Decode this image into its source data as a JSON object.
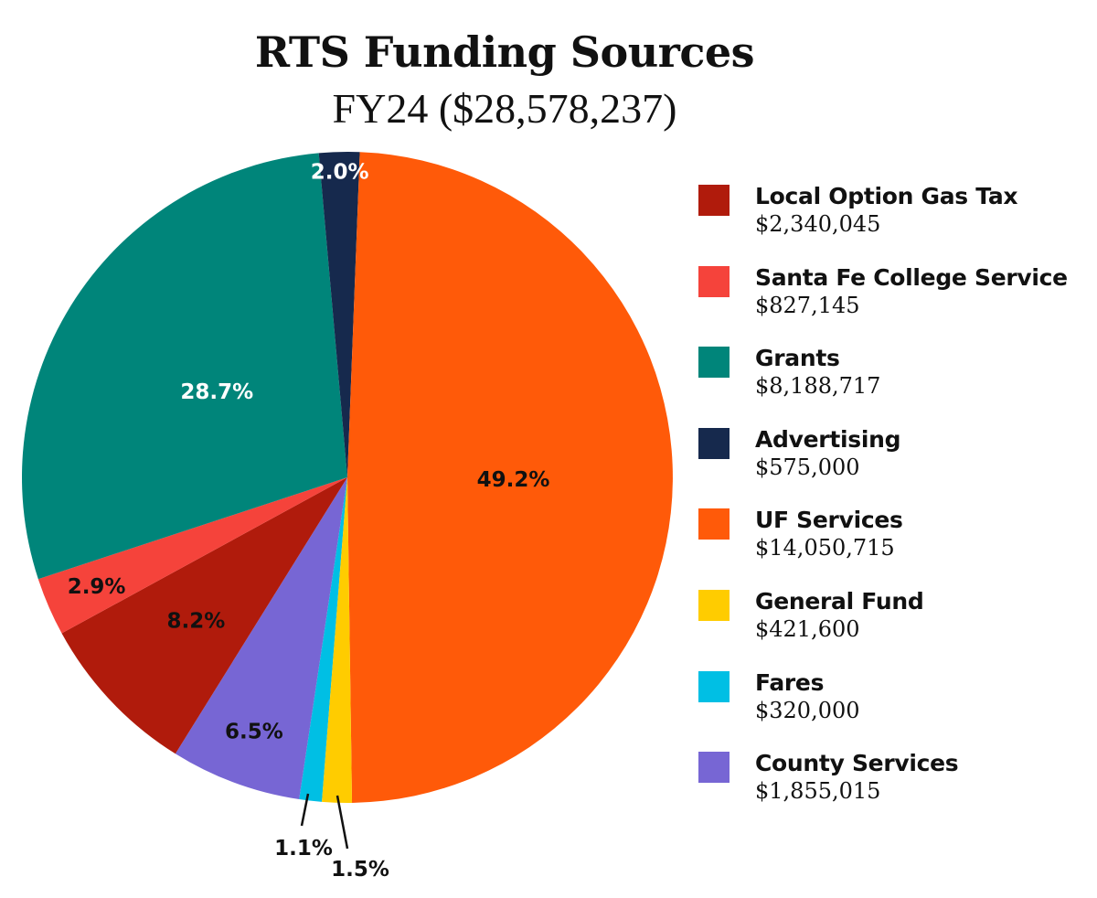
{
  "title": "RTS Funding Sources",
  "subtitle": "FY24 ($28,578,237)",
  "chart_data": {
    "type": "pie",
    "title": "RTS Funding Sources",
    "subtitle": "FY24 ($28,578,237)",
    "total": 28578237,
    "legend_position": "right",
    "slices": [
      {
        "name": "Local Option Gas Tax",
        "amount": 2340045,
        "display_amount": "$2,340,045",
        "percent": 8.2,
        "label": "8.2%",
        "color": "#b01b0c",
        "label_color": "#111111"
      },
      {
        "name": "Santa Fe College Service",
        "amount": 827145,
        "display_amount": "$827,145",
        "percent": 2.9,
        "label": "2.9%",
        "color": "#f5433b",
        "label_color": "#111111"
      },
      {
        "name": "Grants",
        "amount": 8188717,
        "display_amount": "$8,188,717",
        "percent": 28.7,
        "label": "28.7%",
        "color": "#00857a",
        "label_color": "#ffffff"
      },
      {
        "name": "Advertising",
        "amount": 575000,
        "display_amount": "$575,000",
        "percent": 2.0,
        "label": "2.0%",
        "color": "#16294d",
        "label_color": "#ffffff"
      },
      {
        "name": "UF Services",
        "amount": 14050715,
        "display_amount": "$14,050,715",
        "percent": 49.2,
        "label": "49.2%",
        "color": "#ff5a09",
        "label_color": "#111111"
      },
      {
        "name": "General Fund",
        "amount": 421600,
        "display_amount": "$421,600",
        "percent": 1.5,
        "label": "1.5%",
        "color": "#ffcc00",
        "label_color": "#111111"
      },
      {
        "name": "Fares",
        "amount": 320000,
        "display_amount": "$320,000",
        "percent": 1.1,
        "label": "1.1%",
        "color": "#00bfe4",
        "label_color": "#111111"
      },
      {
        "name": "County Services",
        "amount": 1855015,
        "display_amount": "$1,855,015",
        "percent": 6.5,
        "label": "6.5%",
        "color": "#7766d4",
        "label_color": "#111111"
      }
    ]
  }
}
